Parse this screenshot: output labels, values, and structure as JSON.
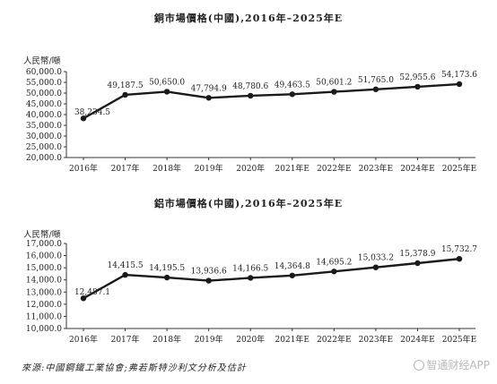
{
  "charts": [
    {
      "title": "銅市場價格(中國),2016年–2025年E",
      "unit": "人民幣/噸",
      "source": ""
    },
    {
      "title": "鋁市場價格(中國),2016年–2025年E",
      "unit": "人民幣/噸"
    }
  ],
  "source": "來源:中國鋼鐵工業協會;弗若斯特沙利文分析及估計",
  "watermark": "智通财经APP",
  "chart_data": [
    {
      "type": "line",
      "title": "銅市場價格(中國),2016年–2025年E",
      "ylabel": "人民幣/噸",
      "categories": [
        "2016年",
        "2017年",
        "2018年",
        "2019年",
        "2020年",
        "2021年E",
        "2022年E",
        "2023年E",
        "2024年E",
        "2025年E"
      ],
      "values": [
        38234.5,
        49187.5,
        50650.0,
        47794.9,
        48780.6,
        49463.5,
        50601.2,
        51765.0,
        52955.6,
        54173.6
      ],
      "labels": [
        "38,234.5",
        "49,187.5",
        "50,650.0",
        "47,794.9",
        "48,780.6",
        "49,463.5",
        "50,601.2",
        "51,765.0",
        "52,955.6",
        "54,173.6"
      ],
      "yticks": [
        "20,000.0",
        "25,000.0",
        "30,000.0",
        "35,000.0",
        "40,000.0",
        "45,000.0",
        "50,000.0",
        "55,000.0",
        "60,000.0"
      ],
      "ylim": [
        20000,
        60000
      ],
      "color": "#1a1a1a"
    },
    {
      "type": "line",
      "title": "鋁市場價格(中國),2016年–2025年E",
      "ylabel": "人民幣/噸",
      "categories": [
        "2016年",
        "2017年",
        "2018年",
        "2019年",
        "2020年",
        "2021年E",
        "2022年E",
        "2023年E",
        "2024年E",
        "2025年E"
      ],
      "values": [
        12487.1,
        14415.5,
        14195.5,
        13936.6,
        14166.5,
        14364.8,
        14695.2,
        15033.2,
        15378.9,
        15732.7
      ],
      "labels": [
        "12,487.1",
        "14,415.5",
        "14,195.5",
        "13,936.6",
        "14,166.5",
        "14,364.8",
        "14,695.2",
        "15,033.2",
        "15,378.9",
        "15,732.7"
      ],
      "yticks": [
        "10,000.0",
        "11,000.0",
        "12,000.0",
        "13,000.0",
        "14,000.0",
        "15,000.0",
        "16,000.0",
        "17,000.0"
      ],
      "ylim": [
        10000,
        17000
      ],
      "color": "#1a1a1a"
    }
  ]
}
